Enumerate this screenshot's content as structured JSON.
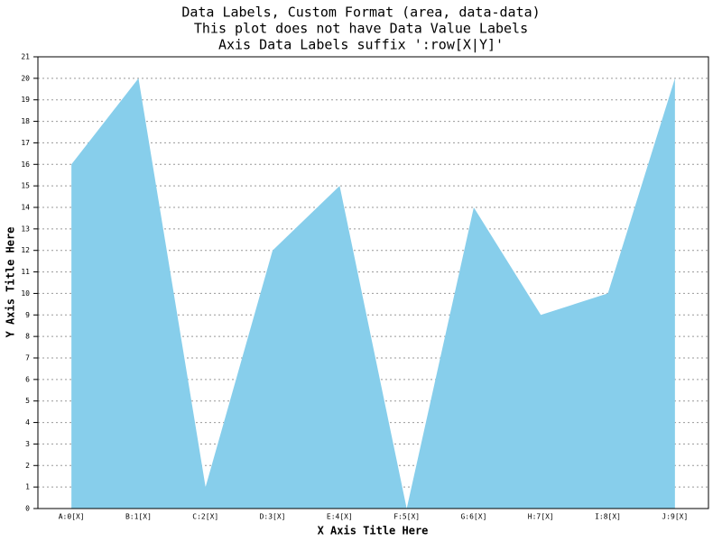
{
  "chart_data": {
    "type": "area",
    "title": [
      "Data Labels, Custom Format (area, data-data)",
      "This plot does not have Data Value Labels",
      "Axis Data Labels suffix ':row[X|Y]'"
    ],
    "x_axis_title": "X Axis Title Here",
    "y_axis_title": "Y Axis Title Here",
    "categories": [
      "A:0[X]",
      "B:1[X]",
      "C:2[X]",
      "D:3[X]",
      "E:4[X]",
      "F:5[X]",
      "G:6[X]",
      "H:7[X]",
      "I:8[X]",
      "J:9[X]"
    ],
    "values": [
      16,
      20,
      1,
      12,
      15,
      0,
      14,
      9,
      10,
      20
    ],
    "color": "#87ceeb",
    "ylim": [
      0,
      21
    ],
    "yticks": [
      0,
      1,
      2,
      3,
      4,
      5,
      6,
      7,
      8,
      9,
      10,
      11,
      12,
      13,
      14,
      15,
      16,
      17,
      18,
      19,
      20,
      21
    ],
    "grid": true
  }
}
